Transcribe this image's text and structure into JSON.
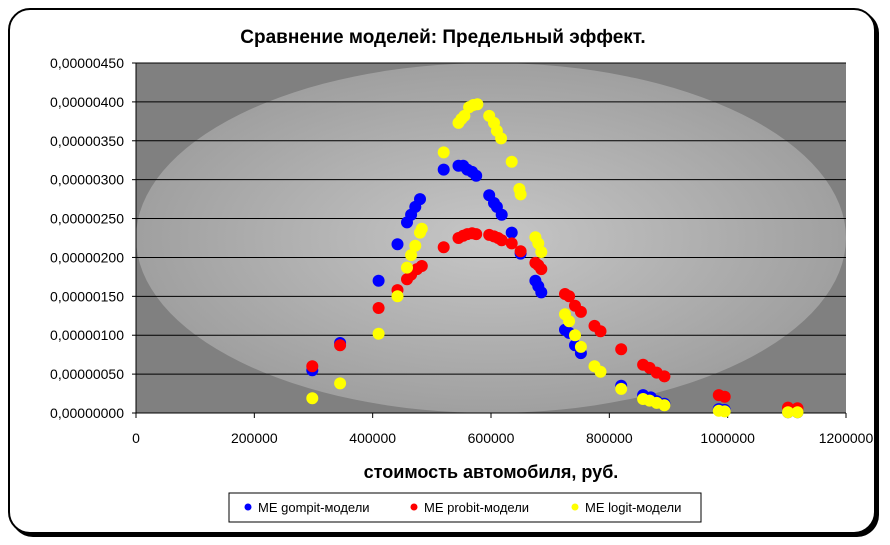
{
  "chart_data": {
    "type": "scatter",
    "title": "Сравнение моделей: Предельный эффект.",
    "xlabel": "стоимость автомобиля, руб.",
    "ylabel": "",
    "xlim": [
      0,
      1200000
    ],
    "ylim": [
      0,
      4.5e-06
    ],
    "x_ticks": [
      "0",
      "200000",
      "400000",
      "600000",
      "800000",
      "1000000",
      "1200000"
    ],
    "y_ticks": [
      "0,00000000",
      "0,00000050",
      "0,00000100",
      "0,00000150",
      "0,00000200",
      "0,00000250",
      "0,00000300",
      "0,00000350",
      "0,00000400",
      "0,00000450"
    ],
    "grid": "horizontal",
    "legend_position": "bottom",
    "series": [
      {
        "name": "ME gompit-модели",
        "color": "#0000ff",
        "points": [
          [
            298000,
            5.5e-07
          ],
          [
            345000,
            9e-07
          ],
          [
            410000,
            1.7e-06
          ],
          [
            442000,
            2.17e-06
          ],
          [
            458000,
            2.45e-06
          ],
          [
            465000,
            2.55e-06
          ],
          [
            472000,
            2.65e-06
          ],
          [
            480000,
            2.75e-06
          ],
          [
            520000,
            3.13e-06
          ],
          [
            545000,
            3.18e-06
          ],
          [
            553000,
            3.18e-06
          ],
          [
            560000,
            3.13e-06
          ],
          [
            568000,
            3.1e-06
          ],
          [
            575000,
            3.05e-06
          ],
          [
            597000,
            2.8e-06
          ],
          [
            605000,
            2.7e-06
          ],
          [
            610000,
            2.65e-06
          ],
          [
            618000,
            2.55e-06
          ],
          [
            635000,
            2.32e-06
          ],
          [
            650000,
            2.05e-06
          ],
          [
            675000,
            1.7e-06
          ],
          [
            680000,
            1.63e-06
          ],
          [
            685000,
            1.55e-06
          ],
          [
            725000,
            1.07e-06
          ],
          [
            732000,
            1.03e-06
          ],
          [
            742000,
            8.7e-07
          ],
          [
            752000,
            7.7e-07
          ],
          [
            820000,
            3.5e-07
          ],
          [
            857000,
            2.3e-07
          ],
          [
            870000,
            2e-07
          ],
          [
            880000,
            1.5e-07
          ],
          [
            893000,
            1.2e-07
          ],
          [
            985000,
            5e-08
          ],
          [
            995000,
            4e-08
          ],
          [
            1102000,
            1e-08
          ],
          [
            1118000,
            1e-08
          ]
        ]
      },
      {
        "name": "ME probit-модели",
        "color": "#ff0000",
        "points": [
          [
            298000,
            6e-07
          ],
          [
            345000,
            8.7e-07
          ],
          [
            410000,
            1.35e-06
          ],
          [
            442000,
            1.58e-06
          ],
          [
            458000,
            1.72e-06
          ],
          [
            465000,
            1.78e-06
          ],
          [
            475000,
            1.85e-06
          ],
          [
            483000,
            1.89e-06
          ],
          [
            520000,
            2.13e-06
          ],
          [
            545000,
            2.25e-06
          ],
          [
            553000,
            2.28e-06
          ],
          [
            560000,
            2.3e-06
          ],
          [
            568000,
            2.31e-06
          ],
          [
            575000,
            2.3e-06
          ],
          [
            597000,
            2.29e-06
          ],
          [
            605000,
            2.27e-06
          ],
          [
            612000,
            2.25e-06
          ],
          [
            618000,
            2.22e-06
          ],
          [
            635000,
            2.18e-06
          ],
          [
            650000,
            2.08e-06
          ],
          [
            675000,
            1.93e-06
          ],
          [
            680000,
            1.9e-06
          ],
          [
            685000,
            1.85e-06
          ],
          [
            725000,
            1.53e-06
          ],
          [
            732000,
            1.5e-06
          ],
          [
            742000,
            1.38e-06
          ],
          [
            752000,
            1.3e-06
          ],
          [
            775000,
            1.12e-06
          ],
          [
            785000,
            1.05e-06
          ],
          [
            820000,
            8.2e-07
          ],
          [
            857000,
            6.2e-07
          ],
          [
            868000,
            5.8e-07
          ],
          [
            880000,
            5.2e-07
          ],
          [
            893000,
            4.7e-07
          ],
          [
            985000,
            2.3e-07
          ],
          [
            995000,
            2.1e-07
          ],
          [
            1102000,
            7e-08
          ],
          [
            1118000,
            6e-08
          ]
        ]
      },
      {
        "name": "ME logit-модели",
        "color": "#ffff00",
        "points": [
          [
            298000,
            1.9e-07
          ],
          [
            345000,
            3.8e-07
          ],
          [
            410000,
            1.02e-06
          ],
          [
            442000,
            1.5e-06
          ],
          [
            458000,
            1.87e-06
          ],
          [
            465000,
            2.03e-06
          ],
          [
            472000,
            2.15e-06
          ],
          [
            480000,
            2.32e-06
          ],
          [
            483000,
            2.37e-06
          ],
          [
            520000,
            3.35e-06
          ],
          [
            545000,
            3.73e-06
          ],
          [
            550000,
            3.78e-06
          ],
          [
            555000,
            3.82e-06
          ],
          [
            563000,
            3.93e-06
          ],
          [
            570000,
            3.96e-06
          ],
          [
            577000,
            3.97e-06
          ],
          [
            597000,
            3.82e-06
          ],
          [
            605000,
            3.73e-06
          ],
          [
            610000,
            3.63e-06
          ],
          [
            617000,
            3.53e-06
          ],
          [
            635000,
            3.23e-06
          ],
          [
            648000,
            2.88e-06
          ],
          [
            650000,
            2.81e-06
          ],
          [
            675000,
            2.26e-06
          ],
          [
            680000,
            2.18e-06
          ],
          [
            685000,
            2.07e-06
          ],
          [
            725000,
            1.27e-06
          ],
          [
            732000,
            1.18e-06
          ],
          [
            742000,
            1e-06
          ],
          [
            752000,
            8.5e-07
          ],
          [
            775000,
            6e-07
          ],
          [
            785000,
            5.3e-07
          ],
          [
            820000,
            3.1e-07
          ],
          [
            857000,
            1.8e-07
          ],
          [
            868000,
            1.6e-07
          ],
          [
            880000,
            1.3e-07
          ],
          [
            893000,
            1e-07
          ],
          [
            985000,
            3e-08
          ],
          [
            995000,
            2e-08
          ],
          [
            1102000,
            1e-08
          ],
          [
            1118000,
            1e-08
          ]
        ]
      }
    ]
  }
}
